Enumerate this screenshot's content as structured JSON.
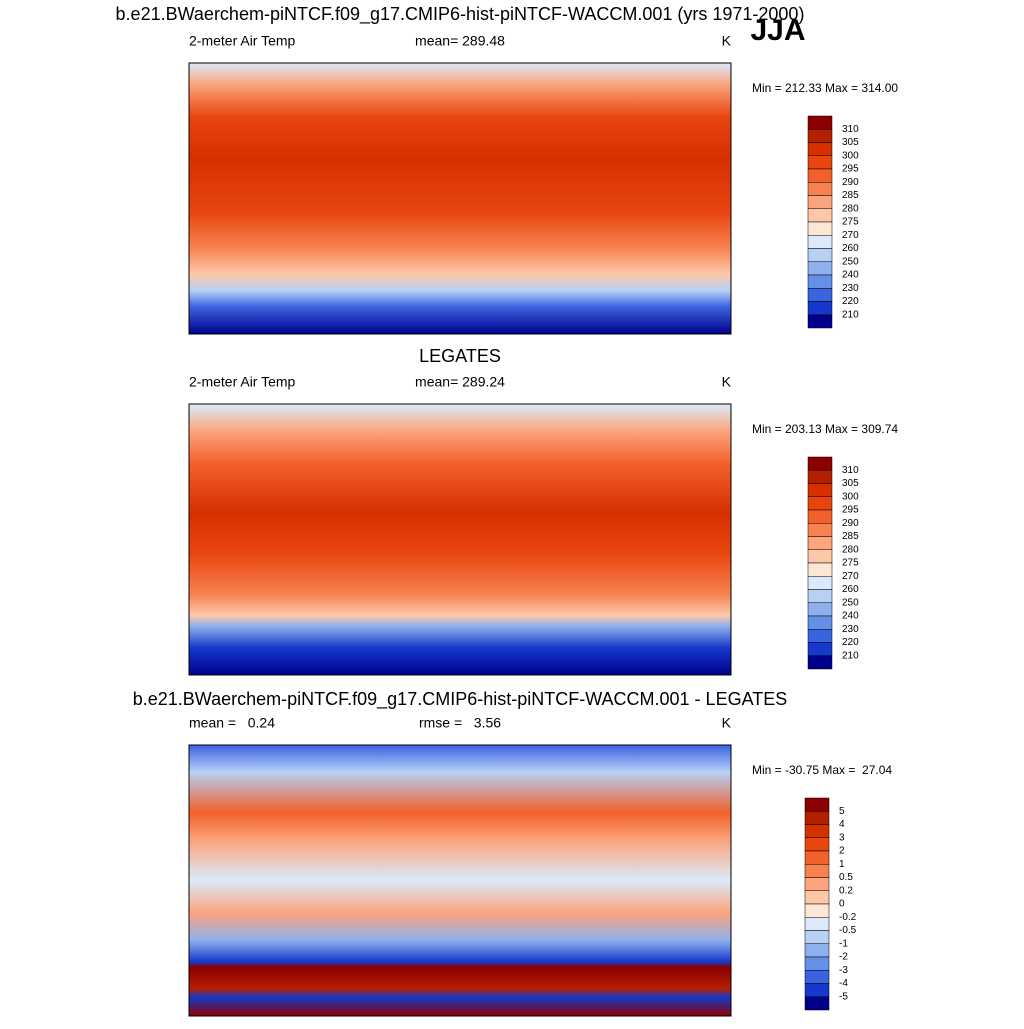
{
  "header": {
    "season": "JJA"
  },
  "panels": [
    {
      "title": "b.e21.BWaerchem-piNTCF.f09_g17.CMIP6-hist-piNTCF-WACCM.001 (yrs 1971-2000)",
      "left": "2-meter Air Temp",
      "center": "mean= 289.48",
      "right": "K",
      "range": "Min = 212.33 Max = 314.00",
      "colorbar": {
        "labels": [
          "310",
          "305",
          "300",
          "295",
          "290",
          "285",
          "280",
          "275",
          "270",
          "260",
          "250",
          "240",
          "230",
          "220",
          "210"
        ],
        "colors": [
          "#8b0000",
          "#b41f00",
          "#d73000",
          "#e8450f",
          "#f2602b",
          "#f7814f",
          "#fba47d",
          "#fdc8a8",
          "#fee6d4",
          "#dbe9fb",
          "#b7d0f6",
          "#8fb0ee",
          "#6590e8",
          "#3a63e0",
          "#1638cc",
          "#00008b"
        ]
      }
    },
    {
      "title": "LEGATES",
      "left": "2-meter Air Temp",
      "center": "mean= 289.24",
      "right": "K",
      "range": "Min = 203.13 Max = 309.74",
      "colorbar": {
        "labels": [
          "310",
          "305",
          "300",
          "295",
          "290",
          "285",
          "280",
          "275",
          "270",
          "260",
          "250",
          "240",
          "230",
          "220",
          "210"
        ],
        "colors": [
          "#8b0000",
          "#b41f00",
          "#d73000",
          "#e8450f",
          "#f2602b",
          "#f7814f",
          "#fba47d",
          "#fdc8a8",
          "#fee6d4",
          "#dbe9fb",
          "#b7d0f6",
          "#8fb0ee",
          "#6590e8",
          "#3a63e0",
          "#1638cc",
          "#00008b"
        ]
      }
    },
    {
      "title": "b.e21.BWaerchem-piNTCF.f09_g17.CMIP6-hist-piNTCF-WACCM.001 - LEGATES",
      "left": "mean =   0.24",
      "center": "rmse =   3.56",
      "right": "K",
      "range": "Min = -30.75 Max =  27.04",
      "colorbar": {
        "labels": [
          "5",
          "4",
          "3",
          "2",
          "1",
          "0.5",
          "0.2",
          "0",
          "-0.2",
          "-0.5",
          "-1",
          "-2",
          "-3",
          "-4",
          "-5"
        ],
        "colors": [
          "#8b0000",
          "#b41f00",
          "#d73000",
          "#e8450f",
          "#f2602b",
          "#f7814f",
          "#fba47d",
          "#fdc8a8",
          "#fee6d4",
          "#dbe9fb",
          "#b7d0f6",
          "#8fb0ee",
          "#6590e8",
          "#3a63e0",
          "#1638cc",
          "#00008b"
        ]
      }
    }
  ]
}
